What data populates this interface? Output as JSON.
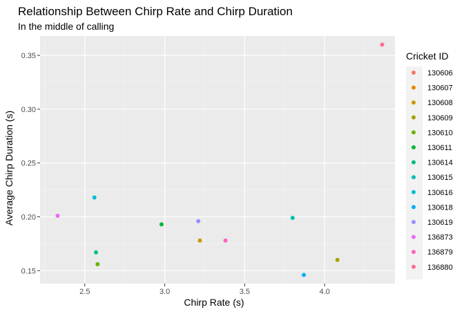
{
  "chart_data": {
    "type": "scatter",
    "title": "Relationship Between Chirp Rate and Chirp Duration",
    "subtitle": "In the middle of calling",
    "xlabel": "Chirp Rate (s)",
    "ylabel": "Average Chirp Duration (s)",
    "xlim": [
      2.22,
      4.44
    ],
    "ylim": [
      0.138,
      0.368
    ],
    "x_ticks": [
      2.5,
      3.0,
      3.5,
      4.0
    ],
    "x_tick_labels": [
      "2.5",
      "3.0",
      "3.5",
      "4.0"
    ],
    "y_ticks": [
      0.15,
      0.2,
      0.25,
      0.3,
      0.35
    ],
    "y_tick_labels": [
      "0.15",
      "0.20",
      "0.25",
      "0.30",
      "0.35"
    ],
    "grid": true,
    "legend_title": "Cricket ID",
    "legend_position": "right",
    "series": [
      {
        "name": "130606",
        "color": "#F8766D",
        "points": []
      },
      {
        "name": "130607",
        "color": "#E58700",
        "points": []
      },
      {
        "name": "130608",
        "color": "#C99800",
        "points": [
          {
            "x": 3.22,
            "y": 0.178
          }
        ]
      },
      {
        "name": "130609",
        "color": "#A3A500",
        "points": [
          {
            "x": 4.08,
            "y": 0.16
          }
        ]
      },
      {
        "name": "130610",
        "color": "#6BB100",
        "points": [
          {
            "x": 2.58,
            "y": 0.156
          }
        ]
      },
      {
        "name": "130611",
        "color": "#00BA38",
        "points": [
          {
            "x": 2.98,
            "y": 0.193
          }
        ]
      },
      {
        "name": "130614",
        "color": "#00BF7D",
        "points": [
          {
            "x": 2.57,
            "y": 0.167
          }
        ]
      },
      {
        "name": "130615",
        "color": "#00C0AF",
        "points": [
          {
            "x": 3.8,
            "y": 0.199
          }
        ]
      },
      {
        "name": "130616",
        "color": "#00BCD8",
        "points": [
          {
            "x": 2.56,
            "y": 0.218
          }
        ]
      },
      {
        "name": "130618",
        "color": "#00B0F6",
        "points": [
          {
            "x": 3.87,
            "y": 0.146
          }
        ]
      },
      {
        "name": "130619",
        "color": "#9590FF",
        "points": [
          {
            "x": 3.21,
            "y": 0.196
          }
        ]
      },
      {
        "name": "136873",
        "color": "#E76BF3",
        "points": [
          {
            "x": 2.33,
            "y": 0.201
          }
        ]
      },
      {
        "name": "136879",
        "color": "#FF62BC",
        "points": [
          {
            "x": 3.38,
            "y": 0.178
          }
        ]
      },
      {
        "name": "136880",
        "color": "#FF6C91",
        "points": [
          {
            "x": 4.36,
            "y": 0.36
          }
        ]
      }
    ]
  }
}
